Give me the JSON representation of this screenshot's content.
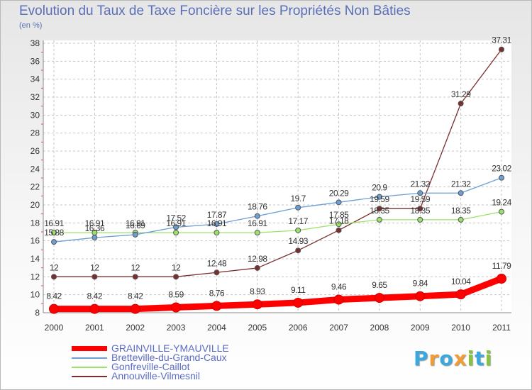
{
  "chart_data": {
    "type": "line",
    "title": "Evolution du Taux de Taxe Foncière sur les Propriétés Non Bâties",
    "unit_label": "(en %)",
    "x": [
      "2000",
      "2001",
      "2002",
      "2003",
      "2004",
      "2005",
      "2006",
      "2007",
      "2008",
      "2009",
      "2010",
      "2011"
    ],
    "ylim": [
      8,
      38
    ],
    "yticks": [
      "8",
      "10",
      "12",
      "14",
      "16",
      "18",
      "20",
      "22",
      "24",
      "26",
      "28",
      "30",
      "32",
      "34",
      "36",
      "38"
    ],
    "grid": true,
    "legend_position": "bottom-left",
    "series": [
      {
        "name": "GRAINVILLE-YMAUVILLE",
        "color": "#ff0000",
        "values": [
          8.42,
          8.42,
          8.42,
          8.59,
          8.76,
          8.93,
          9.11,
          9.46,
          9.65,
          9.84,
          10.04,
          11.79
        ],
        "labels": [
          "8.42",
          "8.42",
          "8.42",
          "8.59",
          "8.76",
          "8.93",
          "9.11",
          "9.46",
          "9.65",
          "9.84",
          "10.04",
          "11.79"
        ]
      },
      {
        "name": "Bretteville-du-Grand-Caux",
        "color": "#6b9fd6",
        "values": [
          15.88,
          16.36,
          16.69,
          17.52,
          17.87,
          18.76,
          19.7,
          20.29,
          20.9,
          21.32,
          21.32,
          23.02
        ],
        "labels": [
          "15.88",
          "16.36",
          "16.69",
          "17.52",
          "17.87",
          "18.76",
          "19.7",
          "20.29",
          "20.9",
          "21.32",
          "21.32",
          "23.02"
        ]
      },
      {
        "name": "Gonfreville-Caillot",
        "color": "#99e26b",
        "values": [
          16.91,
          16.91,
          16.91,
          16.91,
          16.91,
          16.91,
          17.17,
          17.85,
          18.35,
          18.35,
          18.35,
          19.24
        ],
        "labels": [
          "16.91",
          "16.91",
          "16.91",
          "16.91",
          "16.91",
          "16.91",
          "17.17",
          "17.85",
          "18.35",
          "18.35",
          "18.35",
          "19.24"
        ]
      },
      {
        "name": "Annouville-Vilmesnil",
        "color": "#7b2e2e",
        "values": [
          12,
          12,
          12,
          12,
          12.48,
          12.98,
          14.93,
          17.18,
          19.59,
          19.59,
          31.29,
          37.31
        ],
        "labels": [
          "12",
          "12",
          "12",
          "12",
          "12.48",
          "12.98",
          "14.93",
          "17.18",
          "19.59",
          "19.59",
          "31.29",
          "37.31"
        ]
      }
    ]
  },
  "logo": {
    "letters": [
      "P",
      "r",
      "o",
      "x",
      "i",
      "t",
      "i"
    ],
    "colors": [
      "#3ca9de",
      "#f39c33",
      "#3ca9de",
      "#f39c33",
      "#86c440",
      "#3ca9de",
      "#86c440"
    ]
  }
}
